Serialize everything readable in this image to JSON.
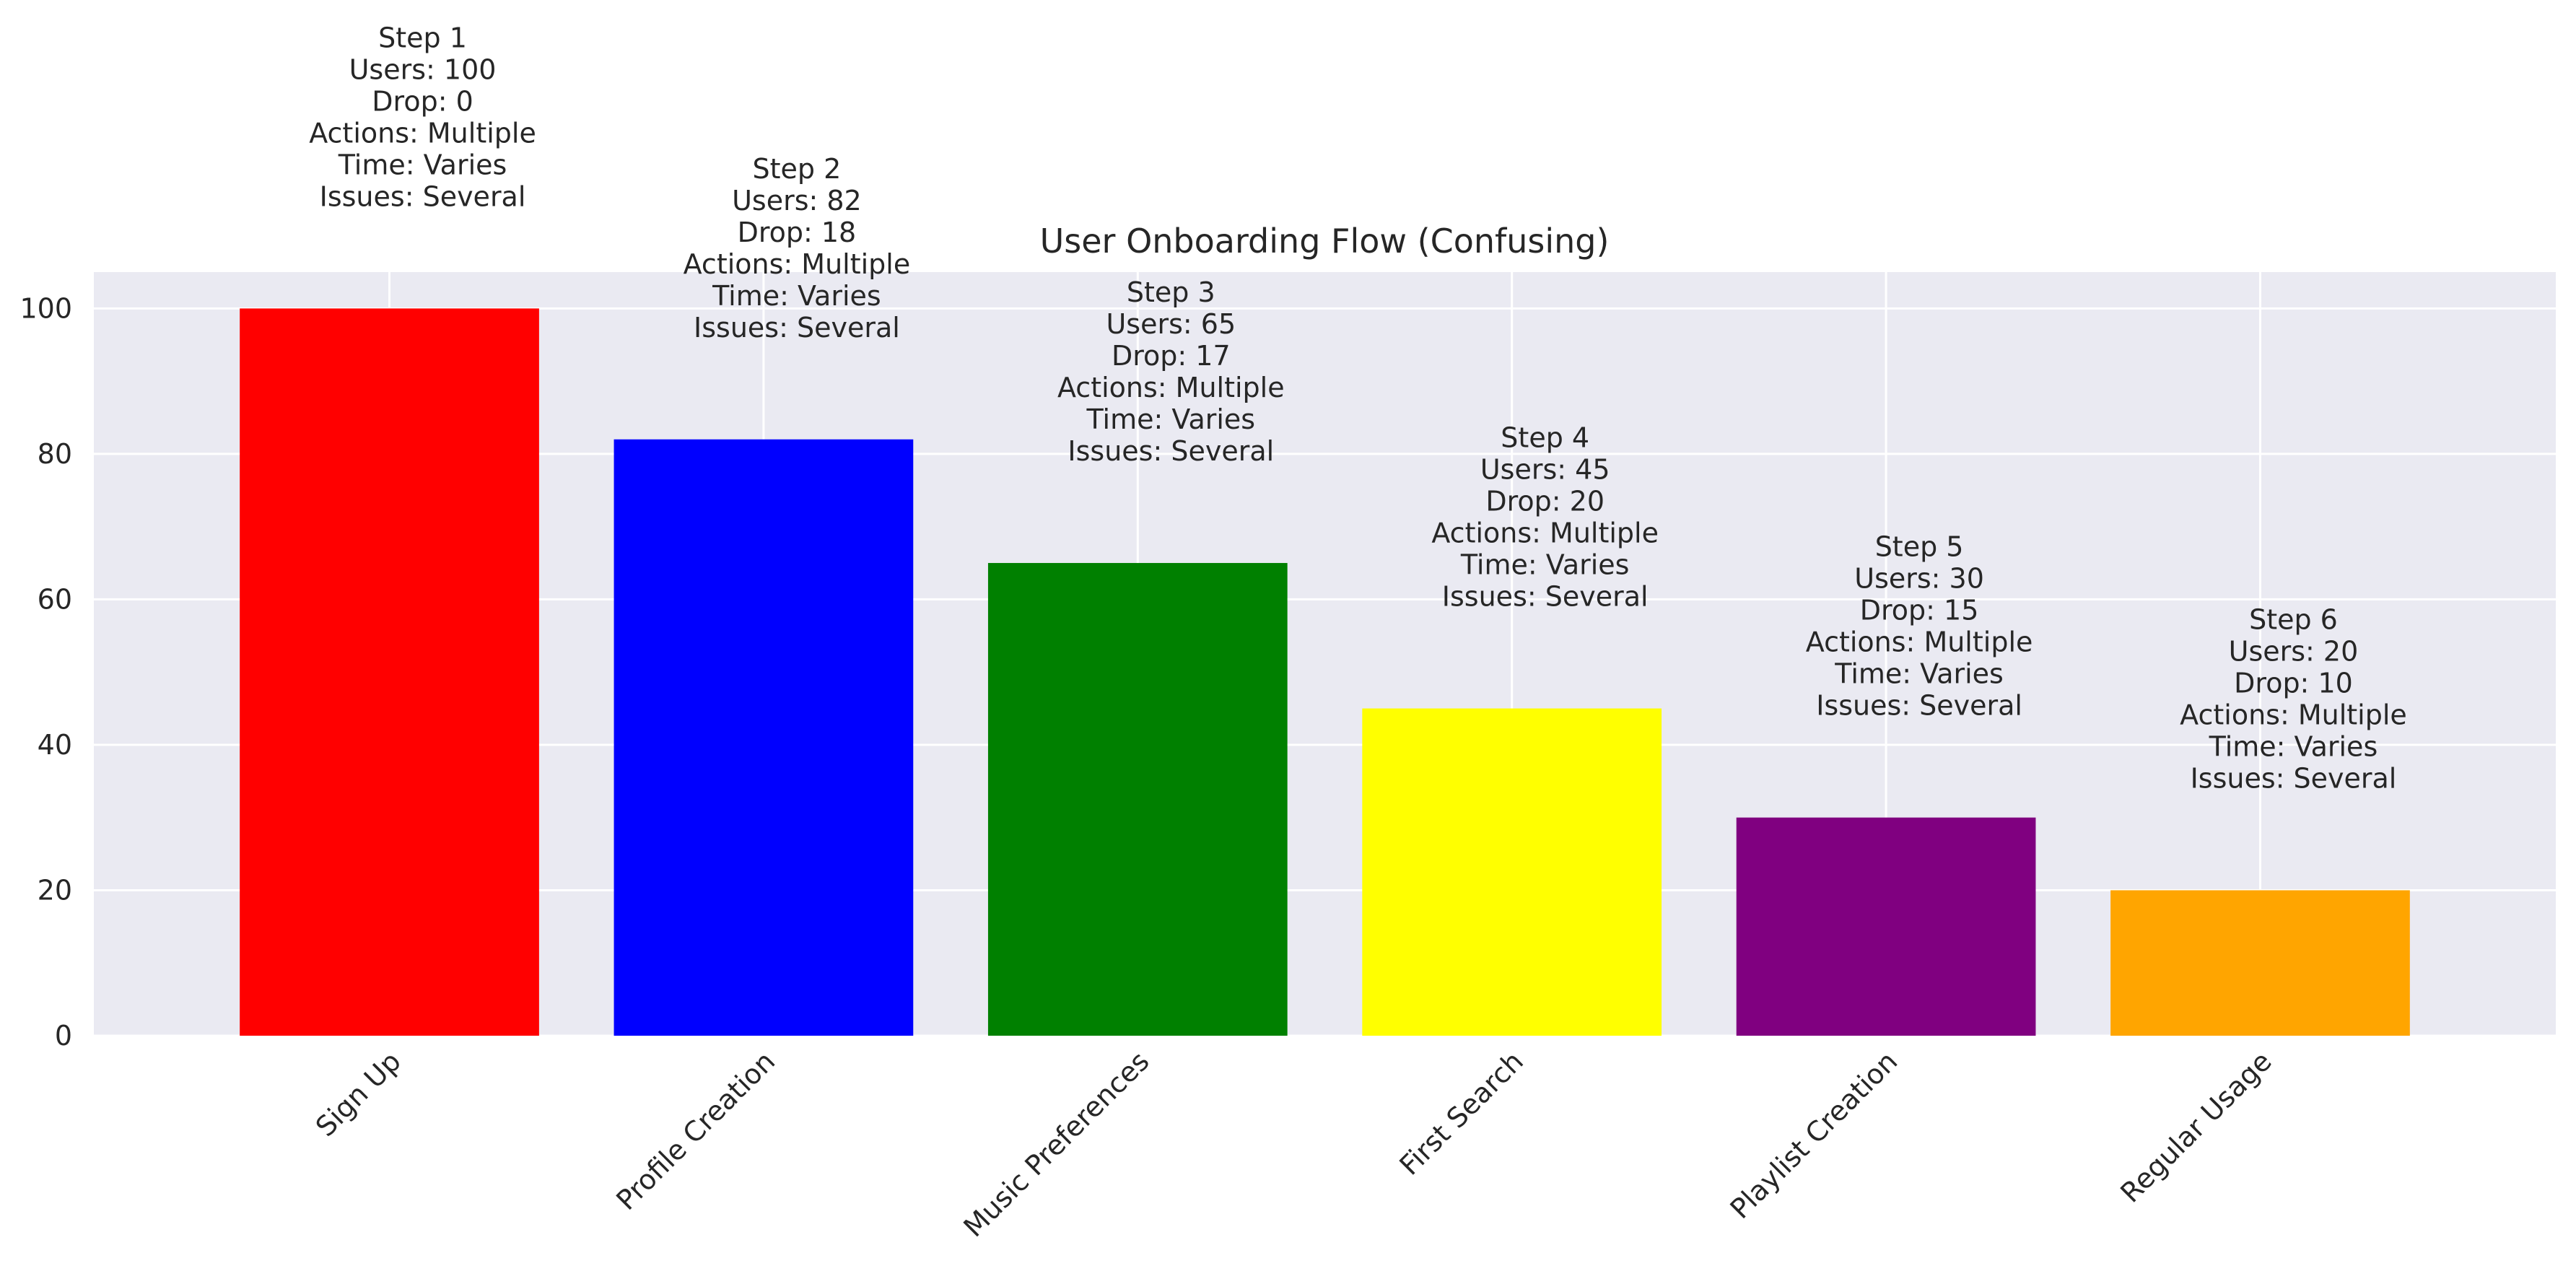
{
  "chart_data": {
    "type": "bar",
    "title": "User Onboarding Flow (Confusing)",
    "xlabel": "",
    "ylabel": "",
    "categories": [
      "Sign Up",
      "Profile Creation",
      "Music Preferences",
      "First Search",
      "Playlist Creation",
      "Regular Usage"
    ],
    "values": [
      100,
      82,
      65,
      45,
      30,
      20
    ],
    "colors": [
      "#ff0000",
      "#0000ff",
      "#008000",
      "#ffff00",
      "#800080",
      "#ffa500"
    ],
    "ylim": [
      0,
      105
    ],
    "yticks": [
      0,
      20,
      40,
      60,
      80,
      100
    ],
    "grid": true,
    "x_tick_rotation": -45,
    "annotations": [
      [
        "Step 1",
        "Users: 100",
        "Drop: 0",
        "Actions: Multiple",
        "Time: Varies",
        "Issues: Several"
      ],
      [
        "Step 2",
        "Users: 82",
        "Drop: 18",
        "Actions: Multiple",
        "Time: Varies",
        "Issues: Several"
      ],
      [
        "Step 3",
        "Users: 65",
        "Drop: 17",
        "Actions: Multiple",
        "Time: Varies",
        "Issues: Several"
      ],
      [
        "Step 4",
        "Users: 45",
        "Drop: 20",
        "Actions: Multiple",
        "Time: Varies",
        "Issues: Several"
      ],
      [
        "Step 5",
        "Users: 30",
        "Drop: 15",
        "Actions: Multiple",
        "Time: Varies",
        "Issues: Several"
      ],
      [
        "Step 6",
        "Users: 20",
        "Drop: 10",
        "Actions: Multiple",
        "Time: Varies",
        "Issues: Several"
      ]
    ],
    "colors_style": {
      "plot_background": "#eaeaf2",
      "grid": "#ffffff",
      "text": "#262626"
    }
  }
}
